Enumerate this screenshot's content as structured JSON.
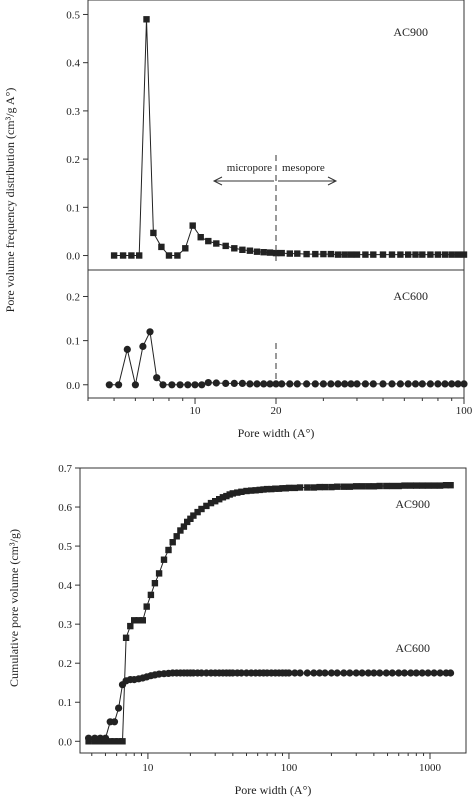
{
  "chart_data": [
    {
      "type": "scatter",
      "id": "top",
      "xscale": "log",
      "xlim": [
        4,
        100
      ],
      "xticks": [
        10,
        20,
        100
      ],
      "xlabel": "Pore width (A°)",
      "ylabel": "Pore volume frequency distribution (cm³/g A°)",
      "panels": [
        {
          "id": "ac900",
          "label": "AC900",
          "ylim": [
            -0.03,
            0.53
          ],
          "yticks": [
            0.0,
            0.1,
            0.2,
            0.3,
            0.4,
            0.5
          ],
          "marker": "square",
          "x": [
            5.0,
            5.4,
            5.8,
            6.2,
            6.6,
            7.0,
            7.5,
            8.0,
            8.6,
            9.2,
            9.8,
            10.5,
            11.2,
            12.0,
            13.0,
            14.0,
            15.0,
            16.0,
            17.0,
            18.0,
            19.0,
            20.0,
            21.0,
            22.5,
            24.0,
            26.0,
            28.0,
            30.0,
            32.0,
            34.0,
            36.0,
            38.0,
            40.0,
            43.0,
            46.0,
            50.0,
            54.0,
            58.0,
            62.0,
            66.0,
            70.0,
            75.0,
            80.0,
            85.0,
            90.0,
            95.0,
            100.0
          ],
          "y": [
            0.0,
            0.0,
            0.0,
            0.0,
            0.49,
            0.047,
            0.018,
            0.0,
            0.0,
            0.015,
            0.062,
            0.038,
            0.03,
            0.025,
            0.02,
            0.015,
            0.012,
            0.01,
            0.008,
            0.007,
            0.006,
            0.005,
            0.005,
            0.004,
            0.004,
            0.003,
            0.003,
            0.003,
            0.003,
            0.002,
            0.002,
            0.002,
            0.002,
            0.002,
            0.002,
            0.002,
            0.002,
            0.002,
            0.002,
            0.002,
            0.002,
            0.002,
            0.002,
            0.002,
            0.002,
            0.002,
            0.002
          ]
        },
        {
          "id": "ac600",
          "label": "AC600",
          "ylim": [
            -0.03,
            0.26
          ],
          "yticks": [
            0.0,
            0.1,
            0.2
          ],
          "marker": "circle",
          "x": [
            4.8,
            5.2,
            5.6,
            6.0,
            6.4,
            6.8,
            7.2,
            7.6,
            8.2,
            8.8,
            9.4,
            10.0,
            10.6,
            11.2,
            12.0,
            13.0,
            14.0,
            15.0,
            16.0,
            17.0,
            18.0,
            19.0,
            20.0,
            21.0,
            22.5,
            24.0,
            26.0,
            28.0,
            30.0,
            32.0,
            34.0,
            36.0,
            38.0,
            40.0,
            43.0,
            46.0,
            50.0,
            54.0,
            58.0,
            62.0,
            66.0,
            70.0,
            75.0,
            80.0,
            85.0,
            90.0,
            95.0,
            100.0
          ],
          "y": [
            0.0,
            0.0,
            0.08,
            0.0,
            0.087,
            0.12,
            0.016,
            0.0,
            0.0,
            0.0,
            0.0,
            0.0,
            0.0,
            0.005,
            0.004,
            0.003,
            0.003,
            0.003,
            0.002,
            0.002,
            0.002,
            0.002,
            0.002,
            0.002,
            0.002,
            0.002,
            0.002,
            0.002,
            0.002,
            0.002,
            0.002,
            0.002,
            0.002,
            0.002,
            0.002,
            0.002,
            0.002,
            0.002,
            0.002,
            0.002,
            0.002,
            0.002,
            0.002,
            0.002,
            0.002,
            0.002,
            0.002,
            0.002
          ]
        }
      ],
      "annotations": {
        "divider_x": 20,
        "left_label": "micropore",
        "right_label": "mesopore"
      }
    },
    {
      "type": "scatter",
      "id": "bottom",
      "xscale": "log",
      "xlim": [
        3.3,
        1800
      ],
      "xticks": [
        10,
        100,
        1000
      ],
      "ylim": [
        -0.03,
        0.7
      ],
      "yticks": [
        0.0,
        0.1,
        0.2,
        0.3,
        0.4,
        0.5,
        0.6,
        0.7
      ],
      "xlabel": "Pore width (A°)",
      "ylabel": "Cumulative pore volume (cm³/g)",
      "series": [
        {
          "name": "AC900",
          "marker": "square",
          "x": [
            3.8,
            4.2,
            4.6,
            5.0,
            5.4,
            5.8,
            6.2,
            6.6,
            7.0,
            7.5,
            8.0,
            8.6,
            9.2,
            9.8,
            10.5,
            11.2,
            12.0,
            13.0,
            14.0,
            15.0,
            16.0,
            17.0,
            18.0,
            19.0,
            20.0,
            21.0,
            22.5,
            24.0,
            26.0,
            28.0,
            30.0,
            32.0,
            34.0,
            36.0,
            38.0,
            40.0,
            43.0,
            46.0,
            50.0,
            54.0,
            58.0,
            62.0,
            66.0,
            70.0,
            75.0,
            80.0,
            85.0,
            90.0,
            95.0,
            100.0,
            110.0,
            120.0,
            135.0,
            150.0,
            165.0,
            180.0,
            200.0,
            220.0,
            245.0,
            270.0,
            300.0,
            330.0,
            365.0,
            400.0,
            440.0,
            490.0,
            540.0,
            600.0,
            660.0,
            730.0,
            800.0,
            880.0,
            970.0,
            1070.0,
            1180.0,
            1300.0,
            1400.0
          ],
          "y": [
            0.0,
            0.0,
            0.0,
            0.0,
            0.0,
            0.0,
            0.0,
            0.0,
            0.265,
            0.295,
            0.31,
            0.31,
            0.31,
            0.345,
            0.375,
            0.405,
            0.43,
            0.465,
            0.49,
            0.51,
            0.525,
            0.54,
            0.55,
            0.562,
            0.57,
            0.578,
            0.587,
            0.595,
            0.603,
            0.61,
            0.615,
            0.62,
            0.625,
            0.628,
            0.632,
            0.635,
            0.637,
            0.639,
            0.641,
            0.642,
            0.643,
            0.644,
            0.645,
            0.646,
            0.646,
            0.647,
            0.647,
            0.648,
            0.648,
            0.649,
            0.649,
            0.65,
            0.65,
            0.65,
            0.651,
            0.651,
            0.651,
            0.652,
            0.652,
            0.652,
            0.653,
            0.653,
            0.653,
            0.653,
            0.654,
            0.654,
            0.654,
            0.654,
            0.655,
            0.655,
            0.655,
            0.655,
            0.655,
            0.655,
            0.655,
            0.656,
            0.656
          ]
        },
        {
          "name": "AC600",
          "marker": "circle",
          "x": [
            3.8,
            4.2,
            4.6,
            5.0,
            5.4,
            5.8,
            6.2,
            6.6,
            7.0,
            7.5,
            8.0,
            8.6,
            9.2,
            9.8,
            10.5,
            11.2,
            12.0,
            13.0,
            14.0,
            15.0,
            16.0,
            17.0,
            18.0,
            19.0,
            20.0,
            21.0,
            22.5,
            24.0,
            26.0,
            28.0,
            30.0,
            32.0,
            34.0,
            36.0,
            38.0,
            40.0,
            43.0,
            46.0,
            50.0,
            54.0,
            58.0,
            62.0,
            66.0,
            70.0,
            75.0,
            80.0,
            85.0,
            90.0,
            95.0,
            100.0,
            110.0,
            120.0,
            135.0,
            150.0,
            165.0,
            180.0,
            200.0,
            220.0,
            245.0,
            270.0,
            300.0,
            330.0,
            365.0,
            400.0,
            440.0,
            490.0,
            540.0,
            600.0,
            660.0,
            730.0,
            800.0,
            880.0,
            970.0,
            1070.0,
            1180.0,
            1300.0,
            1400.0
          ],
          "y": [
            0.008,
            0.008,
            0.008,
            0.008,
            0.05,
            0.05,
            0.085,
            0.145,
            0.155,
            0.158,
            0.158,
            0.16,
            0.162,
            0.165,
            0.168,
            0.17,
            0.172,
            0.173,
            0.174,
            0.175,
            0.175,
            0.175,
            0.175,
            0.175,
            0.175,
            0.175,
            0.175,
            0.175,
            0.175,
            0.175,
            0.175,
            0.175,
            0.175,
            0.175,
            0.175,
            0.175,
            0.175,
            0.175,
            0.175,
            0.175,
            0.175,
            0.175,
            0.175,
            0.175,
            0.175,
            0.175,
            0.175,
            0.175,
            0.175,
            0.175,
            0.175,
            0.175,
            0.175,
            0.175,
            0.175,
            0.175,
            0.175,
            0.175,
            0.175,
            0.175,
            0.175,
            0.175,
            0.175,
            0.175,
            0.175,
            0.175,
            0.175,
            0.175,
            0.175,
            0.175,
            0.175,
            0.175,
            0.175,
            0.175,
            0.175,
            0.175,
            0.175
          ]
        }
      ],
      "series_labels": [
        "AC900",
        "AC600"
      ]
    }
  ]
}
